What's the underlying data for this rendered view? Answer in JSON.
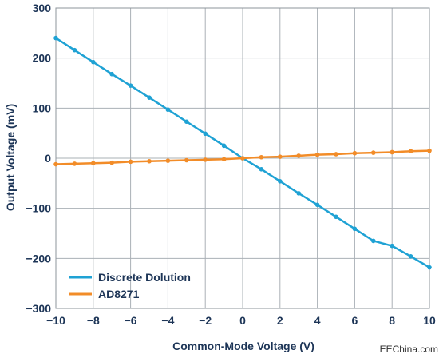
{
  "chart_data": {
    "type": "line",
    "xlabel": "Common-Mode Voltage (V)",
    "ylabel": "Output Voltage (mV)",
    "xlim": [
      -10,
      10
    ],
    "ylim": [
      -300,
      300
    ],
    "xticks": [
      -10,
      -8,
      -6,
      -4,
      -2,
      0,
      2,
      4,
      6,
      8,
      10
    ],
    "yticks": [
      -300,
      -200,
      -100,
      0,
      100,
      200,
      300
    ],
    "xtick_labels": [
      "−10",
      "−8",
      "−6",
      "−4",
      "−2",
      "0",
      "2",
      "4",
      "6",
      "8",
      "10"
    ],
    "ytick_labels": [
      "−300",
      "−200",
      "−100",
      "0",
      "100",
      "200",
      "300"
    ],
    "grid": true,
    "legend_position": "bottom-left",
    "series": [
      {
        "name": "Discrete Dolution",
        "color": "#1fa2d4",
        "x": [
          -10,
          -9,
          -8,
          -7,
          -6,
          -5,
          -4,
          -3,
          -2,
          -1,
          0,
          1,
          2,
          3,
          4,
          5,
          6,
          7,
          8,
          9,
          10
        ],
        "y": [
          240,
          216,
          192,
          168,
          145,
          121,
          97,
          73,
          49,
          25,
          0,
          -22,
          -46,
          -70,
          -93,
          -117,
          -141,
          -165,
          -175,
          -196,
          -218
        ]
      },
      {
        "name": "AD8271",
        "color": "#f28c28",
        "x": [
          -10,
          -9,
          -8,
          -7,
          -6,
          -5,
          -4,
          -3,
          -2,
          -1,
          0,
          1,
          2,
          3,
          4,
          5,
          6,
          7,
          8,
          9,
          10
        ],
        "y": [
          -12,
          -11,
          -10,
          -9,
          -7,
          -6,
          -5,
          -4,
          -3,
          -2,
          0,
          2,
          3,
          5,
          7,
          8,
          10,
          11,
          12,
          14,
          15
        ]
      }
    ]
  },
  "watermark": "EEChina.com"
}
